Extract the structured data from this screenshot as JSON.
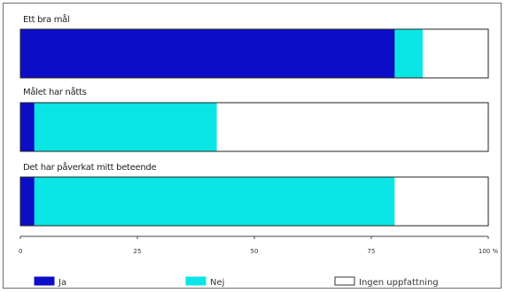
{
  "chart_data": {
    "type": "bar",
    "orientation": "horizontal",
    "stacked": true,
    "categories": [
      "Ett bra mål",
      "Målet har nåtts",
      "Det har påverkat mitt beteende"
    ],
    "series": [
      {
        "name": "Ja",
        "color": "#0d0dc8",
        "values": [
          80,
          3,
          3
        ]
      },
      {
        "name": "Nej",
        "color": "#0ae6e6",
        "values": [
          6,
          39,
          77
        ]
      },
      {
        "name": "Ingen uppfattning",
        "color": "#ffffff",
        "values": [
          14,
          58,
          20
        ]
      }
    ],
    "xlim": [
      0,
      100
    ],
    "xticks": [
      0,
      25,
      50,
      75,
      100
    ],
    "xtick_labels": [
      "0",
      "25",
      "50",
      "75",
      "100 %"
    ],
    "legend_position": "bottom",
    "grid": false
  }
}
